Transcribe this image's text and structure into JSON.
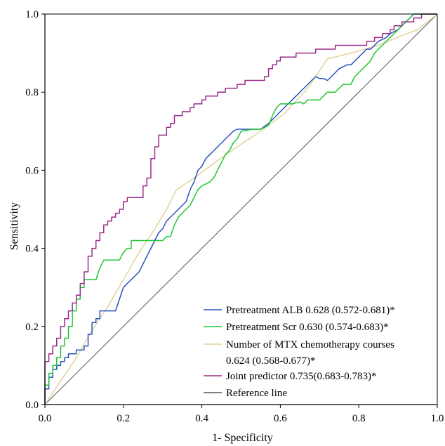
{
  "chart_data": {
    "type": "line",
    "title": "",
    "xlabel": "1- Specificity",
    "ylabel": "Sensitivity",
    "xlim": [
      0.0,
      1.0
    ],
    "ylim": [
      0.0,
      1.0
    ],
    "x_ticks": [
      "0.0",
      "0.2",
      "0.4",
      "0.6",
      "0.8",
      "1.0"
    ],
    "y_ticks": [
      "0.0",
      "0.2",
      "0.4",
      "0.6",
      "0.8",
      "1.0"
    ],
    "grid": false,
    "legend_position": "bottom-right",
    "series": [
      {
        "name": "Pretreatment ALB 0.628 (0.572-0.681)*",
        "color": "#2a52be",
        "points": [
          [
            0,
            0
          ],
          [
            0,
            0.04
          ],
          [
            0.01,
            0.04
          ],
          [
            0.01,
            0.07
          ],
          [
            0.02,
            0.07
          ],
          [
            0.02,
            0.09
          ],
          [
            0.03,
            0.09
          ],
          [
            0.03,
            0.1
          ],
          [
            0.04,
            0.1
          ],
          [
            0.04,
            0.11
          ],
          [
            0.05,
            0.11
          ],
          [
            0.05,
            0.12
          ],
          [
            0.06,
            0.12
          ],
          [
            0.06,
            0.13
          ],
          [
            0.08,
            0.13
          ],
          [
            0.08,
            0.14
          ],
          [
            0.1,
            0.14
          ],
          [
            0.1,
            0.15
          ],
          [
            0.11,
            0.15
          ],
          [
            0.11,
            0.18
          ],
          [
            0.12,
            0.18
          ],
          [
            0.12,
            0.21
          ],
          [
            0.13,
            0.21
          ],
          [
            0.13,
            0.22
          ],
          [
            0.14,
            0.22
          ],
          [
            0.14,
            0.24
          ],
          [
            0.18,
            0.24
          ],
          [
            0.19,
            0.27
          ],
          [
            0.2,
            0.3
          ],
          [
            0.22,
            0.32
          ],
          [
            0.24,
            0.34
          ],
          [
            0.25,
            0.36
          ],
          [
            0.26,
            0.38
          ],
          [
            0.27,
            0.4
          ],
          [
            0.28,
            0.42
          ],
          [
            0.29,
            0.44
          ],
          [
            0.3,
            0.45
          ],
          [
            0.31,
            0.47
          ],
          [
            0.32,
            0.48
          ],
          [
            0.33,
            0.49
          ],
          [
            0.34,
            0.5
          ],
          [
            0.36,
            0.52
          ],
          [
            0.37,
            0.55
          ],
          [
            0.38,
            0.57
          ],
          [
            0.39,
            0.6
          ],
          [
            0.4,
            0.61
          ],
          [
            0.41,
            0.63
          ],
          [
            0.42,
            0.64
          ],
          [
            0.43,
            0.65
          ],
          [
            0.44,
            0.66
          ],
          [
            0.45,
            0.67
          ],
          [
            0.46,
            0.68
          ],
          [
            0.47,
            0.69
          ],
          [
            0.48,
            0.7
          ],
          [
            0.49,
            0.705
          ],
          [
            0.52,
            0.705
          ],
          [
            0.55,
            0.705
          ],
          [
            0.57,
            0.72
          ],
          [
            0.58,
            0.73
          ],
          [
            0.59,
            0.74
          ],
          [
            0.6,
            0.75
          ],
          [
            0.61,
            0.76
          ],
          [
            0.62,
            0.77
          ],
          [
            0.63,
            0.78
          ],
          [
            0.64,
            0.79
          ],
          [
            0.65,
            0.8
          ],
          [
            0.66,
            0.81
          ],
          [
            0.67,
            0.82
          ],
          [
            0.68,
            0.83
          ],
          [
            0.69,
            0.84
          ],
          [
            0.7,
            0.835
          ],
          [
            0.71,
            0.835
          ],
          [
            0.72,
            0.83
          ],
          [
            0.73,
            0.84
          ],
          [
            0.74,
            0.85
          ],
          [
            0.75,
            0.86
          ],
          [
            0.77,
            0.87
          ],
          [
            0.78,
            0.87
          ],
          [
            0.79,
            0.88
          ],
          [
            0.8,
            0.89
          ],
          [
            0.81,
            0.9
          ],
          [
            0.82,
            0.91
          ],
          [
            0.83,
            0.91
          ],
          [
            0.84,
            0.92
          ],
          [
            0.85,
            0.93
          ],
          [
            0.87,
            0.94
          ],
          [
            0.88,
            0.95
          ],
          [
            0.9,
            0.96
          ],
          [
            0.91,
            0.97
          ],
          [
            0.92,
            0.98
          ],
          [
            0.93,
            0.99
          ],
          [
            0.94,
            1.0
          ],
          [
            1.0,
            1.0
          ]
        ]
      },
      {
        "name": "Pretreatment Scr 0.630 (0.574-0.683)*",
        "color": "#1ec832",
        "points": [
          [
            0,
            0
          ],
          [
            0,
            0.05
          ],
          [
            0.01,
            0.05
          ],
          [
            0.01,
            0.08
          ],
          [
            0.02,
            0.08
          ],
          [
            0.02,
            0.1
          ],
          [
            0.03,
            0.1
          ],
          [
            0.03,
            0.12
          ],
          [
            0.04,
            0.12
          ],
          [
            0.04,
            0.15
          ],
          [
            0.05,
            0.15
          ],
          [
            0.05,
            0.17
          ],
          [
            0.06,
            0.17
          ],
          [
            0.06,
            0.2
          ],
          [
            0.07,
            0.2
          ],
          [
            0.07,
            0.24
          ],
          [
            0.08,
            0.24
          ],
          [
            0.08,
            0.27
          ],
          [
            0.09,
            0.27
          ],
          [
            0.09,
            0.3
          ],
          [
            0.1,
            0.3
          ],
          [
            0.1,
            0.32
          ],
          [
            0.13,
            0.32
          ],
          [
            0.14,
            0.35
          ],
          [
            0.15,
            0.37
          ],
          [
            0.19,
            0.37
          ],
          [
            0.2,
            0.39
          ],
          [
            0.21,
            0.4
          ],
          [
            0.22,
            0.4
          ],
          [
            0.22,
            0.42
          ],
          [
            0.3,
            0.42
          ],
          [
            0.31,
            0.43
          ],
          [
            0.32,
            0.43
          ],
          [
            0.33,
            0.46
          ],
          [
            0.34,
            0.48
          ],
          [
            0.35,
            0.49
          ],
          [
            0.36,
            0.5
          ],
          [
            0.37,
            0.51
          ],
          [
            0.38,
            0.53
          ],
          [
            0.39,
            0.55
          ],
          [
            0.4,
            0.56
          ],
          [
            0.41,
            0.565
          ],
          [
            0.42,
            0.57
          ],
          [
            0.43,
            0.58
          ],
          [
            0.44,
            0.6
          ],
          [
            0.45,
            0.62
          ],
          [
            0.46,
            0.64
          ],
          [
            0.47,
            0.65
          ],
          [
            0.48,
            0.67
          ],
          [
            0.49,
            0.68
          ],
          [
            0.5,
            0.7
          ],
          [
            0.53,
            0.705
          ],
          [
            0.55,
            0.705
          ],
          [
            0.57,
            0.715
          ],
          [
            0.58,
            0.74
          ],
          [
            0.59,
            0.76
          ],
          [
            0.6,
            0.77
          ],
          [
            0.63,
            0.77
          ],
          [
            0.65,
            0.775
          ],
          [
            0.66,
            0.77
          ],
          [
            0.67,
            0.78
          ],
          [
            0.7,
            0.78
          ],
          [
            0.71,
            0.79
          ],
          [
            0.72,
            0.8
          ],
          [
            0.74,
            0.8
          ],
          [
            0.75,
            0.81
          ],
          [
            0.76,
            0.82
          ],
          [
            0.78,
            0.82
          ],
          [
            0.79,
            0.84
          ],
          [
            0.8,
            0.85
          ],
          [
            0.81,
            0.86
          ],
          [
            0.82,
            0.87
          ],
          [
            0.83,
            0.88
          ],
          [
            0.84,
            0.9
          ],
          [
            0.85,
            0.91
          ],
          [
            0.86,
            0.92
          ],
          [
            0.87,
            0.93
          ],
          [
            0.88,
            0.94
          ],
          [
            0.89,
            0.95
          ],
          [
            0.9,
            0.96
          ],
          [
            0.91,
            0.97
          ],
          [
            0.92,
            0.98
          ],
          [
            0.93,
            0.99
          ],
          [
            0.94,
            1.0
          ],
          [
            1.0,
            1.0
          ]
        ]
      },
      {
        "name": "Number of MTX chemotherapy courses 0.624 (0.568-0.677)*",
        "name_line1": "Number of MTX chemotherapy courses",
        "name_line2": "0.624 (0.568-0.677)*",
        "color": "#e3d39a",
        "points": [
          [
            0,
            0
          ],
          [
            0.04,
            0.06
          ],
          [
            0.08,
            0.12
          ],
          [
            0.12,
            0.19
          ],
          [
            0.16,
            0.25
          ],
          [
            0.2,
            0.32
          ],
          [
            0.24,
            0.39
          ],
          [
            0.28,
            0.45
          ],
          [
            0.31,
            0.5
          ],
          [
            0.335,
            0.55
          ],
          [
            0.38,
            0.58
          ],
          [
            0.44,
            0.625
          ],
          [
            0.49,
            0.66
          ],
          [
            0.55,
            0.7
          ],
          [
            0.61,
            0.745
          ],
          [
            0.67,
            0.81
          ],
          [
            0.72,
            0.885
          ],
          [
            0.78,
            0.9
          ],
          [
            0.85,
            0.92
          ],
          [
            0.91,
            0.945
          ],
          [
            0.95,
            0.96
          ],
          [
            1.0,
            1.0
          ]
        ]
      },
      {
        "name": "Joint predictor 0.735(0.683-0.783)*",
        "color": "#9b2a8a",
        "points": [
          [
            0,
            0
          ],
          [
            0,
            0.11
          ],
          [
            0.01,
            0.11
          ],
          [
            0.01,
            0.13
          ],
          [
            0.02,
            0.13
          ],
          [
            0.02,
            0.15
          ],
          [
            0.03,
            0.15
          ],
          [
            0.03,
            0.17
          ],
          [
            0.04,
            0.17
          ],
          [
            0.04,
            0.2
          ],
          [
            0.05,
            0.2
          ],
          [
            0.05,
            0.22
          ],
          [
            0.06,
            0.22
          ],
          [
            0.06,
            0.24
          ],
          [
            0.07,
            0.24
          ],
          [
            0.07,
            0.26
          ],
          [
            0.08,
            0.26
          ],
          [
            0.08,
            0.28
          ],
          [
            0.09,
            0.28
          ],
          [
            0.09,
            0.31
          ],
          [
            0.1,
            0.31
          ],
          [
            0.1,
            0.34
          ],
          [
            0.11,
            0.34
          ],
          [
            0.11,
            0.38
          ],
          [
            0.12,
            0.38
          ],
          [
            0.12,
            0.4
          ],
          [
            0.13,
            0.4
          ],
          [
            0.13,
            0.42
          ],
          [
            0.14,
            0.42
          ],
          [
            0.14,
            0.44
          ],
          [
            0.15,
            0.44
          ],
          [
            0.15,
            0.46
          ],
          [
            0.16,
            0.46
          ],
          [
            0.16,
            0.47
          ],
          [
            0.17,
            0.47
          ],
          [
            0.17,
            0.48
          ],
          [
            0.18,
            0.48
          ],
          [
            0.18,
            0.49
          ],
          [
            0.19,
            0.49
          ],
          [
            0.19,
            0.5
          ],
          [
            0.2,
            0.5
          ],
          [
            0.2,
            0.52
          ],
          [
            0.21,
            0.52
          ],
          [
            0.21,
            0.53
          ],
          [
            0.25,
            0.53
          ],
          [
            0.25,
            0.56
          ],
          [
            0.26,
            0.56
          ],
          [
            0.26,
            0.58
          ],
          [
            0.27,
            0.58
          ],
          [
            0.27,
            0.63
          ],
          [
            0.28,
            0.63
          ],
          [
            0.28,
            0.66
          ],
          [
            0.29,
            0.66
          ],
          [
            0.29,
            0.69
          ],
          [
            0.31,
            0.69
          ],
          [
            0.31,
            0.71
          ],
          [
            0.32,
            0.71
          ],
          [
            0.32,
            0.72
          ],
          [
            0.33,
            0.72
          ],
          [
            0.33,
            0.74
          ],
          [
            0.35,
            0.74
          ],
          [
            0.35,
            0.75
          ],
          [
            0.37,
            0.75
          ],
          [
            0.37,
            0.76
          ],
          [
            0.38,
            0.76
          ],
          [
            0.38,
            0.77
          ],
          [
            0.4,
            0.77
          ],
          [
            0.4,
            0.78
          ],
          [
            0.41,
            0.78
          ],
          [
            0.41,
            0.79
          ],
          [
            0.44,
            0.79
          ],
          [
            0.44,
            0.8
          ],
          [
            0.46,
            0.8
          ],
          [
            0.46,
            0.81
          ],
          [
            0.49,
            0.81
          ],
          [
            0.49,
            0.82
          ],
          [
            0.51,
            0.82
          ],
          [
            0.51,
            0.83
          ],
          [
            0.56,
            0.83
          ],
          [
            0.56,
            0.84
          ],
          [
            0.57,
            0.84
          ],
          [
            0.57,
            0.86
          ],
          [
            0.58,
            0.86
          ],
          [
            0.58,
            0.87
          ],
          [
            0.59,
            0.87
          ],
          [
            0.59,
            0.88
          ],
          [
            0.6,
            0.88
          ],
          [
            0.6,
            0.89
          ],
          [
            0.64,
            0.89
          ],
          [
            0.64,
            0.9
          ],
          [
            0.69,
            0.9
          ],
          [
            0.69,
            0.91
          ],
          [
            0.74,
            0.91
          ],
          [
            0.74,
            0.92
          ],
          [
            0.82,
            0.92
          ],
          [
            0.82,
            0.93
          ],
          [
            0.84,
            0.93
          ],
          [
            0.84,
            0.94
          ],
          [
            0.86,
            0.94
          ],
          [
            0.86,
            0.95
          ],
          [
            0.88,
            0.95
          ],
          [
            0.88,
            0.96
          ],
          [
            0.89,
            0.96
          ],
          [
            0.89,
            0.97
          ],
          [
            0.91,
            0.97
          ],
          [
            0.91,
            0.98
          ],
          [
            0.94,
            0.98
          ],
          [
            0.94,
            0.99
          ],
          [
            0.96,
            0.99
          ],
          [
            0.96,
            1.0
          ],
          [
            1.0,
            1.0
          ]
        ]
      },
      {
        "name": "Reference line",
        "color": "#555555",
        "points": [
          [
            0,
            0
          ],
          [
            1,
            1
          ]
        ]
      }
    ]
  }
}
